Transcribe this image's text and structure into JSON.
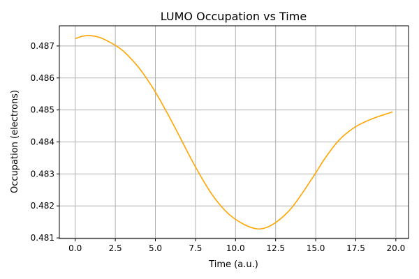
{
  "chart_data": {
    "type": "line",
    "title": "LUMO Occupation vs Time",
    "xlabel": "Time (a.u.)",
    "ylabel": "Occupation (electrons)",
    "xlim": [
      -0.99,
      20.79
    ],
    "ylim": [
      0.48098,
      0.48763
    ],
    "xticks": [
      0.0,
      2.5,
      5.0,
      7.5,
      10.0,
      12.5,
      15.0,
      17.5,
      20.0
    ],
    "xtick_labels": [
      "0.0",
      "2.5",
      "5.0",
      "7.5",
      "10.0",
      "12.5",
      "15.0",
      "17.5",
      "20.0"
    ],
    "yticks": [
      0.481,
      0.482,
      0.483,
      0.484,
      0.485,
      0.486,
      0.487
    ],
    "ytick_labels": [
      "0.481",
      "0.482",
      "0.483",
      "0.484",
      "0.485",
      "0.486",
      "0.487"
    ],
    "grid": true,
    "series": [
      {
        "color": "#ffa500",
        "x": [
          0.0,
          0.5,
          1.0,
          1.5,
          2.0,
          2.5,
          3.0,
          3.5,
          4.0,
          4.5,
          5.0,
          5.5,
          6.0,
          6.5,
          7.0,
          7.5,
          8.0,
          8.5,
          9.0,
          9.5,
          10.0,
          10.5,
          11.0,
          11.5,
          12.0,
          12.5,
          13.0,
          13.5,
          14.0,
          14.5,
          15.0,
          15.5,
          16.0,
          16.5,
          17.0,
          17.5,
          18.0,
          18.5,
          19.0,
          19.5,
          19.8
        ],
        "y": [
          0.48723,
          0.48731,
          0.48732,
          0.48727,
          0.48716,
          0.48702,
          0.48684,
          0.48659,
          0.4863,
          0.48595,
          0.48556,
          0.48512,
          0.48466,
          0.48418,
          0.48369,
          0.48322,
          0.48278,
          0.48238,
          0.48205,
          0.48178,
          0.48158,
          0.48143,
          0.48132,
          0.48128,
          0.48134,
          0.48148,
          0.48168,
          0.48194,
          0.48228,
          0.48265,
          0.48303,
          0.48343,
          0.48378,
          0.48408,
          0.4843,
          0.48448,
          0.48461,
          0.48472,
          0.48481,
          0.48489,
          0.48494
        ]
      }
    ]
  }
}
